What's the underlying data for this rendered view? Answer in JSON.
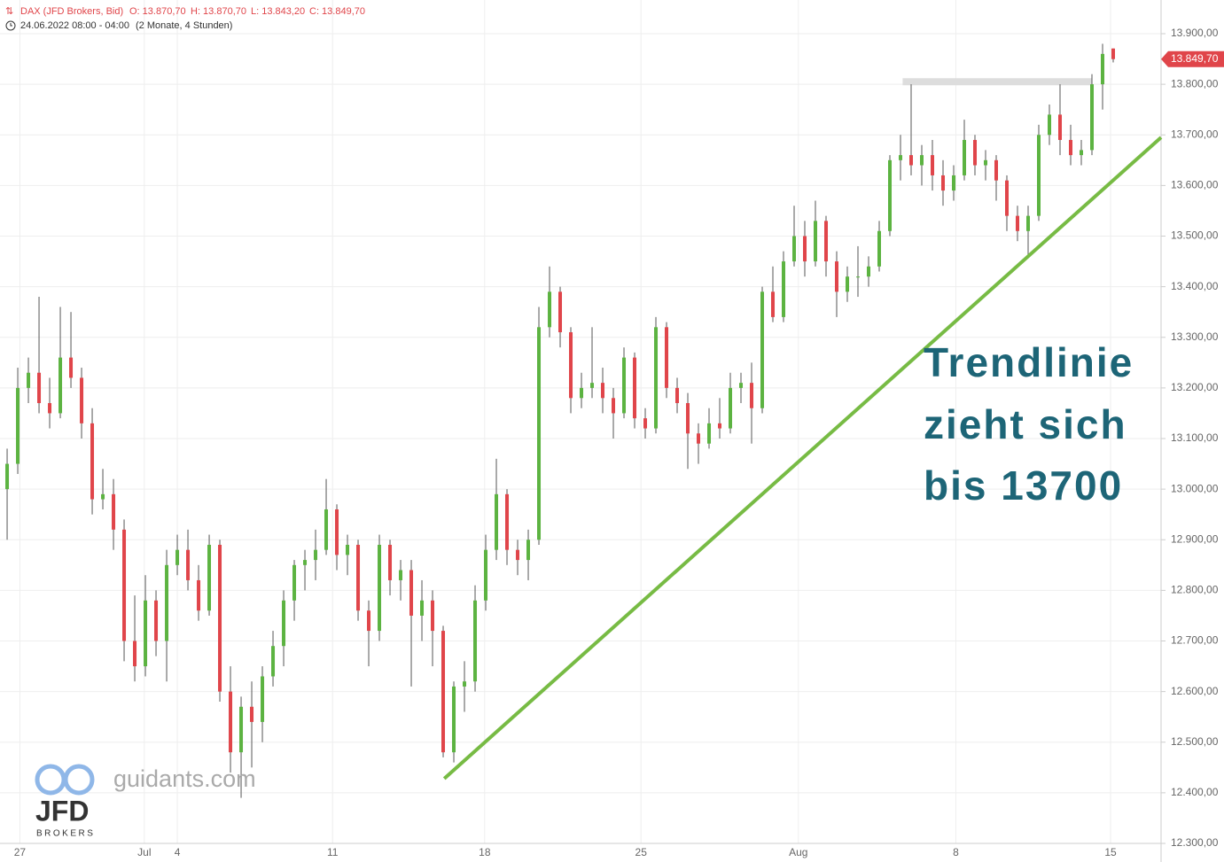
{
  "chart_data": {
    "type": "candlestick",
    "title": "DAX (JFD Brokers, Bid)",
    "header": {
      "open": "O: 13.870,70",
      "high": "H: 13.870,70",
      "low": "L: 13.843,20",
      "close": "C: 13.849,70"
    },
    "subtitle": "24.06.2022 08:00 - 04:00",
    "period": "(2 Monate, 4 Stunden)",
    "annotation": [
      "Trendlinie",
      "zieht sich",
      "bis 13700"
    ],
    "up_color": "#5cb341",
    "down_color": "#e0454a",
    "grid": true,
    "ylim": [
      12300,
      13900
    ],
    "yticks": [
      {
        "value": 12300,
        "label": "12.300,00"
      },
      {
        "value": 12400,
        "label": "12.400,00"
      },
      {
        "value": 12500,
        "label": "12.500,00"
      },
      {
        "value": 12600,
        "label": "12.600,00"
      },
      {
        "value": 12700,
        "label": "12.700,00"
      },
      {
        "value": 12800,
        "label": "12.800,00"
      },
      {
        "value": 12900,
        "label": "12.900,00"
      },
      {
        "value": 13000,
        "label": "13.000,00"
      },
      {
        "value": 13100,
        "label": "13.100,00"
      },
      {
        "value": 13200,
        "label": "13.200,00"
      },
      {
        "value": 13300,
        "label": "13.300,00"
      },
      {
        "value": 13400,
        "label": "13.400,00"
      },
      {
        "value": 13500,
        "label": "13.500,00"
      },
      {
        "value": 13600,
        "label": "13.600,00"
      },
      {
        "value": 13700,
        "label": "13.700,00"
      },
      {
        "value": 13800,
        "label": "13.800,00"
      },
      {
        "value": 13900,
        "label": "13.900,00"
      }
    ],
    "xlim": [
      -0.67,
      108.5
    ],
    "xticks": [
      {
        "value": 1.2,
        "label": "27"
      },
      {
        "value": 12.9,
        "label": "Jul"
      },
      {
        "value": 16,
        "label": "4"
      },
      {
        "value": 30.6,
        "label": "11"
      },
      {
        "value": 44.9,
        "label": "18"
      },
      {
        "value": 59.6,
        "label": "25"
      },
      {
        "value": 74.4,
        "label": "Aug"
      },
      {
        "value": 89.2,
        "label": "8"
      },
      {
        "value": 103.75,
        "label": "15"
      }
    ],
    "last_price": {
      "value": 13849.7,
      "label": "13.849,70"
    },
    "trendline": {
      "color": "#77bb44",
      "x": [
        41.1,
        108.5
      ],
      "y": [
        12428,
        13695
      ]
    },
    "resistance": {
      "color": "#dddddd",
      "x": [
        84.2,
        102
      ],
      "y": [
        13805,
        13805
      ]
    },
    "ohlc": [
      [
        13000,
        13080,
        12900,
        13050
      ],
      [
        13050,
        13240,
        13030,
        13200
      ],
      [
        13200,
        13260,
        13170,
        13230
      ],
      [
        13230,
        13380,
        13150,
        13170
      ],
      [
        13170,
        13220,
        13120,
        13150
      ],
      [
        13150,
        13360,
        13140,
        13260
      ],
      [
        13260,
        13350,
        13200,
        13220
      ],
      [
        13220,
        13240,
        13100,
        13130
      ],
      [
        13130,
        13160,
        12950,
        12980
      ],
      [
        12980,
        13040,
        12960,
        12990
      ],
      [
        12990,
        13020,
        12880,
        12920
      ],
      [
        12920,
        12940,
        12660,
        12700
      ],
      [
        12700,
        12790,
        12620,
        12650
      ],
      [
        12650,
        12830,
        12630,
        12780
      ],
      [
        12780,
        12800,
        12670,
        12700
      ],
      [
        12700,
        12880,
        12620,
        12850
      ],
      [
        12850,
        12910,
        12830,
        12880
      ],
      [
        12880,
        12920,
        12800,
        12820
      ],
      [
        12820,
        12850,
        12740,
        12760
      ],
      [
        12760,
        12910,
        12750,
        12890
      ],
      [
        12890,
        12900,
        12580,
        12600
      ],
      [
        12600,
        12650,
        12440,
        12480
      ],
      [
        12480,
        12590,
        12390,
        12570
      ],
      [
        12570,
        12620,
        12450,
        12540
      ],
      [
        12540,
        12650,
        12500,
        12630
      ],
      [
        12630,
        12720,
        12610,
        12690
      ],
      [
        12690,
        12800,
        12650,
        12780
      ],
      [
        12780,
        12860,
        12740,
        12850
      ],
      [
        12850,
        12880,
        12800,
        12860
      ],
      [
        12860,
        12920,
        12820,
        12880
      ],
      [
        12880,
        13020,
        12870,
        12960
      ],
      [
        12960,
        12970,
        12840,
        12870
      ],
      [
        12870,
        12910,
        12830,
        12890
      ],
      [
        12890,
        12900,
        12740,
        12760
      ],
      [
        12760,
        12780,
        12650,
        12720
      ],
      [
        12720,
        12910,
        12700,
        12890
      ],
      [
        12890,
        12900,
        12790,
        12820
      ],
      [
        12820,
        12860,
        12780,
        12840
      ],
      [
        12840,
        12860,
        12610,
        12750
      ],
      [
        12750,
        12820,
        12700,
        12780
      ],
      [
        12780,
        12800,
        12650,
        12720
      ],
      [
        12720,
        12730,
        12470,
        12480
      ],
      [
        12480,
        12620,
        12460,
        12610
      ],
      [
        12610,
        12660,
        12560,
        12620
      ],
      [
        12620,
        12810,
        12600,
        12780
      ],
      [
        12780,
        12910,
        12760,
        12880
      ],
      [
        12880,
        13060,
        12860,
        12990
      ],
      [
        12990,
        13000,
        12850,
        12880
      ],
      [
        12880,
        12900,
        12830,
        12860
      ],
      [
        12860,
        12920,
        12820,
        12900
      ],
      [
        12900,
        13360,
        12890,
        13320
      ],
      [
        13320,
        13440,
        13300,
        13390
      ],
      [
        13390,
        13400,
        13280,
        13310
      ],
      [
        13310,
        13320,
        13150,
        13180
      ],
      [
        13180,
        13230,
        13160,
        13200
      ],
      [
        13200,
        13320,
        13180,
        13210
      ],
      [
        13210,
        13240,
        13150,
        13180
      ],
      [
        13180,
        13200,
        13100,
        13150
      ],
      [
        13150,
        13280,
        13140,
        13260
      ],
      [
        13260,
        13270,
        13120,
        13140
      ],
      [
        13140,
        13160,
        13100,
        13120
      ],
      [
        13120,
        13340,
        13110,
        13320
      ],
      [
        13320,
        13330,
        13180,
        13200
      ],
      [
        13200,
        13220,
        13150,
        13170
      ],
      [
        13170,
        13190,
        13040,
        13110
      ],
      [
        13110,
        13130,
        13050,
        13090
      ],
      [
        13090,
        13160,
        13080,
        13130
      ],
      [
        13130,
        13180,
        13100,
        13120
      ],
      [
        13120,
        13230,
        13110,
        13200
      ],
      [
        13200,
        13230,
        13170,
        13210
      ],
      [
        13210,
        13250,
        13090,
        13160
      ],
      [
        13160,
        13400,
        13150,
        13390
      ],
      [
        13390,
        13440,
        13330,
        13340
      ],
      [
        13340,
        13470,
        13330,
        13450
      ],
      [
        13450,
        13560,
        13440,
        13500
      ],
      [
        13500,
        13530,
        13420,
        13450
      ],
      [
        13450,
        13570,
        13440,
        13530
      ],
      [
        13530,
        13540,
        13420,
        13450
      ],
      [
        13450,
        13470,
        13340,
        13390
      ],
      [
        13390,
        13440,
        13370,
        13420
      ],
      [
        13420,
        13480,
        13380,
        13420
      ],
      [
        13420,
        13460,
        13400,
        13440
      ],
      [
        13440,
        13530,
        13430,
        13510
      ],
      [
        13510,
        13660,
        13500,
        13650
      ],
      [
        13650,
        13700,
        13610,
        13660
      ],
      [
        13660,
        13800,
        13620,
        13640
      ],
      [
        13640,
        13680,
        13600,
        13660
      ],
      [
        13660,
        13690,
        13590,
        13620
      ],
      [
        13620,
        13650,
        13560,
        13590
      ],
      [
        13590,
        13640,
        13570,
        13620
      ],
      [
        13620,
        13730,
        13610,
        13690
      ],
      [
        13690,
        13700,
        13620,
        13640
      ],
      [
        13640,
        13670,
        13610,
        13650
      ],
      [
        13650,
        13660,
        13570,
        13610
      ],
      [
        13610,
        13620,
        13510,
        13540
      ],
      [
        13540,
        13560,
        13490,
        13510
      ],
      [
        13510,
        13560,
        13460,
        13540
      ],
      [
        13540,
        13720,
        13530,
        13700
      ],
      [
        13700,
        13760,
        13680,
        13740
      ],
      [
        13740,
        13800,
        13660,
        13690
      ],
      [
        13690,
        13720,
        13640,
        13660
      ],
      [
        13660,
        13690,
        13640,
        13670
      ],
      [
        13670,
        13820,
        13660,
        13800
      ],
      [
        13800,
        13880,
        13750,
        13860
      ],
      [
        13870.7,
        13870.7,
        13843.2,
        13849.7
      ]
    ]
  },
  "logo": {
    "site": "guidants.com",
    "brand": "JFD",
    "sub": "BROKERS"
  }
}
